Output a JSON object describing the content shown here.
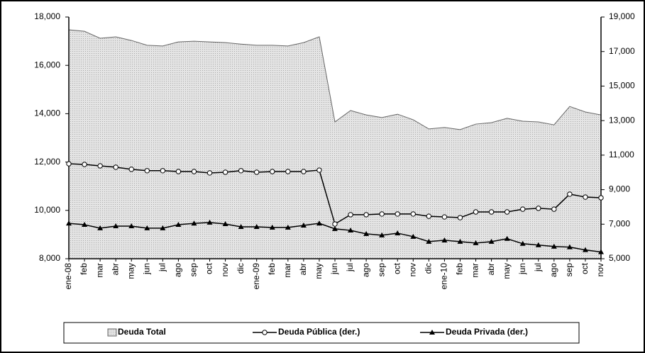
{
  "chart_data": {
    "type": "area-line",
    "categories": [
      "ene-08",
      "feb",
      "mar",
      "abr",
      "may",
      "jun",
      "jul",
      "ago",
      "sep",
      "oct",
      "nov",
      "dic",
      "ene-09",
      "feb",
      "mar",
      "abr",
      "may",
      "jun",
      "jul",
      "ago",
      "sep",
      "oct",
      "nov",
      "dic",
      "ene-10",
      "feb",
      "mar",
      "abr",
      "may",
      "jun",
      "jul",
      "ago",
      "sep",
      "oct",
      "nov"
    ],
    "series": [
      {
        "name": "Deuda Total",
        "color": "#d9d9d9",
        "axis": "y",
        "values": [
          17470,
          17410,
          17120,
          17180,
          17030,
          16830,
          16800,
          16970,
          17000,
          16970,
          16940,
          16880,
          16830,
          16830,
          16800,
          16940,
          17180,
          13660,
          14130,
          13950,
          13840,
          13980,
          13750,
          13370,
          13430,
          13340,
          13570,
          13630,
          13810,
          13690,
          13660,
          13540,
          14300,
          14070,
          13950
        ]
      },
      {
        "name": "Deuda Pública (der.)",
        "color": "#000000",
        "axis": "y2",
        "values": [
          10500,
          10460,
          10380,
          10300,
          10180,
          10100,
          10100,
          10050,
          10050,
          9970,
          10010,
          10100,
          10010,
          10050,
          10050,
          10050,
          10130,
          7010,
          7550,
          7550,
          7590,
          7590,
          7590,
          7460,
          7420,
          7380,
          7710,
          7710,
          7710,
          7870,
          7920,
          7870,
          8740,
          8570,
          8530
        ]
      },
      {
        "name": "Deuda Privada (der.)",
        "color": "#000000",
        "axis": "y2",
        "values": [
          7050,
          6970,
          6770,
          6890,
          6890,
          6770,
          6770,
          6970,
          7050,
          7100,
          7010,
          6850,
          6850,
          6810,
          6810,
          6930,
          7050,
          6730,
          6640,
          6440,
          6360,
          6480,
          6280,
          5990,
          6070,
          5990,
          5910,
          5990,
          6160,
          5870,
          5790,
          5710,
          5670,
          5510,
          5390
        ]
      }
    ],
    "ylim": [
      8000,
      18000
    ],
    "yticks": [
      {
        "value": 8000,
        "label": "8,000"
      },
      {
        "value": 10000,
        "label": "10,000"
      },
      {
        "value": 12000,
        "label": "12,000"
      },
      {
        "value": 14000,
        "label": "14,000"
      },
      {
        "value": 16000,
        "label": "16,000"
      },
      {
        "value": 18000,
        "label": "18,000"
      }
    ],
    "y2lim": [
      5000,
      19000
    ],
    "y2ticks": [
      {
        "value": 5000,
        "label": "5,000"
      },
      {
        "value": 7000,
        "label": "7,000"
      },
      {
        "value": 9000,
        "label": "9,000"
      },
      {
        "value": 11000,
        "label": "11,000"
      },
      {
        "value": 13000,
        "label": "13,000"
      },
      {
        "value": 15000,
        "label": "15,000"
      },
      {
        "value": 17000,
        "label": "17,000"
      },
      {
        "value": 19000,
        "label": "19,000"
      }
    ],
    "legend": "bottom"
  }
}
